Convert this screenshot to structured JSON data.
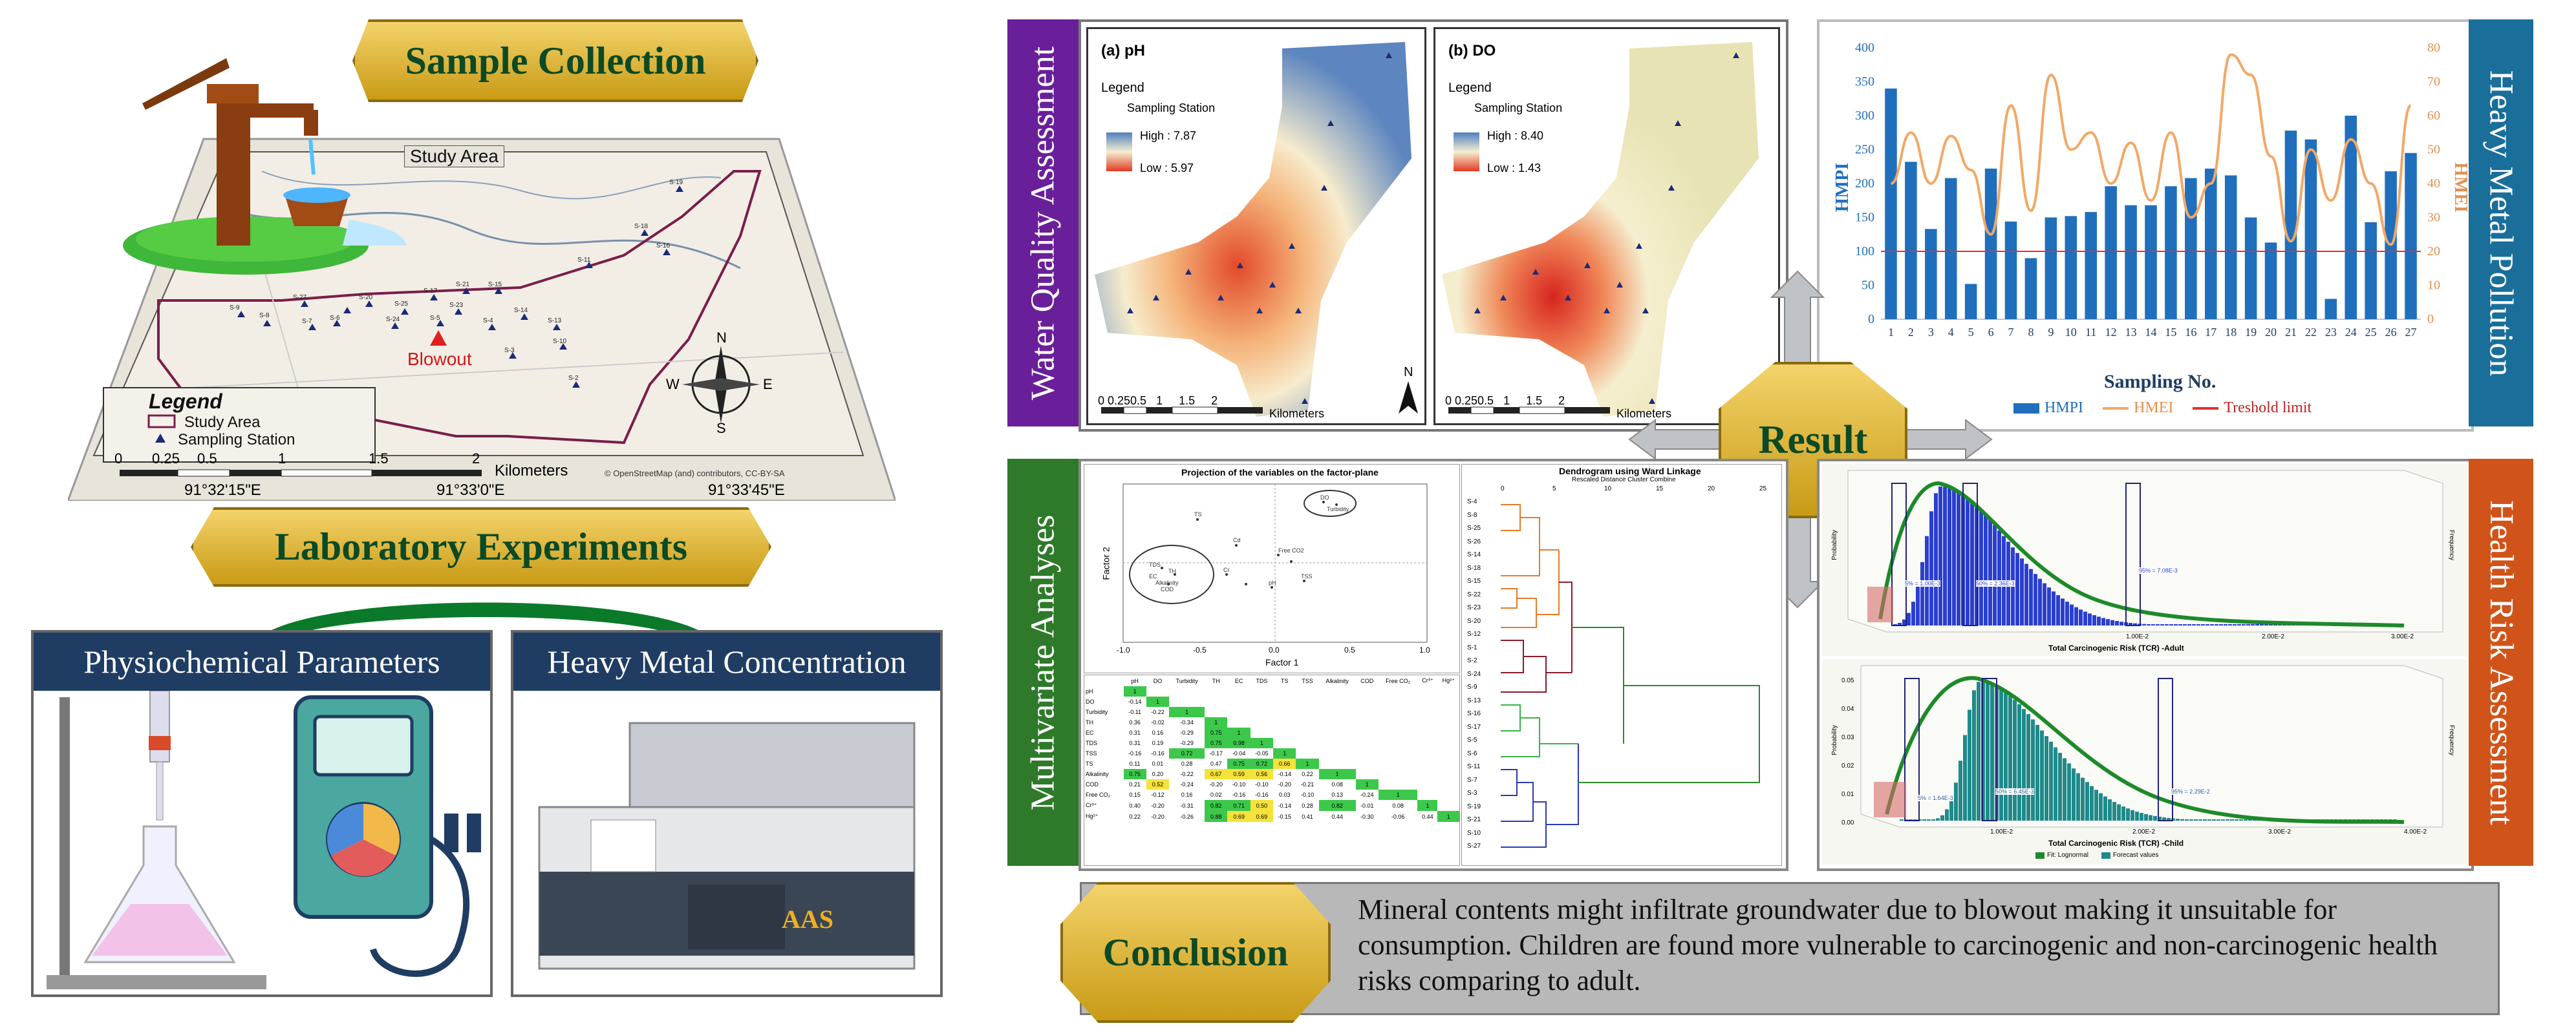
{
  "left": {
    "sample_collection": "Sample Collection",
    "laboratory_experiments": "Laboratory Experiments",
    "physiochemical": "Physiochemical Parameters",
    "heavy_metal": "Heavy Metal Concentration",
    "aas": "AAS",
    "map": {
      "title": "Study Area",
      "legend_title": "Legend",
      "legend_study": "Study Area",
      "legend_station": "Sampling Station",
      "blowout": "Blowout",
      "scale": [
        "0",
        "0.25",
        "0.5",
        "1",
        "1.5",
        "2"
      ],
      "scale_unit": "Kilometers",
      "coords_bottom": [
        "91°32'15\"E",
        "91°33'0\"E",
        "91°33'45\"E"
      ],
      "attribution": "© OpenStreetMap (and) contributors, CC-BY-SA",
      "compass": [
        "N",
        "S",
        "E",
        "W"
      ],
      "stations": [
        {
          "id": "S-1"
        },
        {
          "id": "S-2"
        },
        {
          "id": "S-3"
        },
        {
          "id": "S-4"
        },
        {
          "id": "S-5"
        },
        {
          "id": "S-6"
        },
        {
          "id": "S-7"
        },
        {
          "id": "S-8"
        },
        {
          "id": "S-9"
        },
        {
          "id": "S-10"
        },
        {
          "id": "S-11"
        },
        {
          "id": "S-12"
        },
        {
          "id": "S-13"
        },
        {
          "id": "S-14"
        },
        {
          "id": "S-15"
        },
        {
          "id": "S-16"
        },
        {
          "id": "S-17"
        },
        {
          "id": "S-18"
        },
        {
          "id": "S-19"
        },
        {
          "id": "S-20"
        },
        {
          "id": "S-21"
        },
        {
          "id": "S-22"
        },
        {
          "id": "S-23"
        },
        {
          "id": "S-24"
        },
        {
          "id": "S-25"
        },
        {
          "id": "S-26"
        },
        {
          "id": "S-27"
        }
      ]
    }
  },
  "wqa": {
    "label": "Water Quality Assessment",
    "ph": {
      "title": "(a) pH",
      "legend": "Legend",
      "station": "Sampling Station",
      "high": "High : 7.87",
      "low": "Low : 5.97"
    },
    "do": {
      "title": "(b) DO",
      "legend": "Legend",
      "station": "Sampling Station",
      "high": "High : 8.40",
      "low": "Low : 1.43"
    },
    "scale": "0 0.250.5   1     1.5     2",
    "scale_unit": "Kilometers",
    "north": "N"
  },
  "hmp": {
    "label": "Heavy Metal Pollution",
    "xlabel": "Sampling No.",
    "ylabel_left": "HMPI",
    "ylabel_right": "HMEI",
    "legend": [
      "HMPI",
      "HMEI",
      "Treshold limit"
    ],
    "colors": {
      "bar": "#1f6fbd",
      "line": "#f2a866",
      "threshold": "#e03030"
    }
  },
  "chart_data": {
    "type": "bar",
    "categories": [
      "1",
      "2",
      "3",
      "4",
      "5",
      "6",
      "7",
      "8",
      "9",
      "10",
      "11",
      "12",
      "13",
      "14",
      "15",
      "16",
      "17",
      "18",
      "19",
      "20",
      "21",
      "22",
      "23",
      "24",
      "25",
      "26",
      "27"
    ],
    "series": [
      {
        "name": "HMPI",
        "axis": "left",
        "values": [
          340,
          232,
          133,
          208,
          52,
          222,
          144,
          90,
          150,
          152,
          158,
          196,
          168,
          168,
          196,
          208,
          222,
          212,
          150,
          113,
          278,
          265,
          30,
          300,
          143,
          218,
          245
        ]
      },
      {
        "name": "HMEI",
        "axis": "right",
        "type": "line",
        "values": [
          40,
          55,
          40,
          54,
          44,
          25,
          63,
          32,
          72,
          50,
          55,
          40,
          52,
          35,
          55,
          30,
          40,
          78,
          72,
          48,
          23,
          50,
          35,
          53,
          40,
          22,
          63
        ]
      },
      {
        "name": "Treshold limit",
        "axis": "left",
        "type": "line",
        "values": [
          100,
          100,
          100,
          100,
          100,
          100,
          100,
          100,
          100,
          100,
          100,
          100,
          100,
          100,
          100,
          100,
          100,
          100,
          100,
          100,
          100,
          100,
          100,
          100,
          100,
          100,
          100
        ]
      }
    ],
    "xlabel": "Sampling No.",
    "ylabel": "HMPI",
    "ylabel_right": "HMEI",
    "ylim": [
      0,
      400
    ],
    "ylim_right": [
      0,
      80
    ],
    "yticks": [
      "0",
      "50",
      "100",
      "150",
      "200",
      "250",
      "300",
      "350",
      "400"
    ],
    "yticks_right": [
      "0",
      "10",
      "20",
      "30",
      "40",
      "50",
      "60",
      "70",
      "80"
    ]
  },
  "mva": {
    "label": "Multivariate Analyses",
    "pca_title": "Projection of the variables on the factor-plane",
    "pca_xlabel": "Factor 1",
    "pca_ylabel": "Factor 2",
    "pca_xticks": [
      "-1.0",
      "-0.5",
      "0.0",
      "0.5",
      "1.0"
    ],
    "pca_points": [
      "TDS",
      "TH",
      "EC",
      "Alkalinity",
      "COD",
      "DO",
      "Turbidity",
      "TS",
      "Cd",
      "Cr",
      "pH",
      "Free CO2",
      "TSS"
    ],
    "corr_headers": [
      "pH",
      "DO",
      "Turbidity",
      "TH",
      "EC",
      "TDS",
      "TS",
      "TSS",
      "Alkalinity",
      "COD",
      "Free CO₂",
      "Cr³⁺",
      "Hg²⁺"
    ],
    "corr_rows": [
      {
        "name": "pH",
        "vals": [
          "1"
        ]
      },
      {
        "name": "DO",
        "vals": [
          "-0.14",
          "1"
        ]
      },
      {
        "name": "Turbidity",
        "vals": [
          "-0.11",
          "-0.22",
          "1"
        ]
      },
      {
        "name": "TH",
        "vals": [
          "0.36",
          "-0.02",
          "-0.34",
          "1"
        ]
      },
      {
        "name": "EC",
        "vals": [
          "0.31",
          "0.16",
          "-0.29",
          "0.75",
          "1"
        ]
      },
      {
        "name": "TDS",
        "vals": [
          "0.31",
          "0.19",
          "-0.29",
          "0.75",
          "0.98",
          "1"
        ]
      },
      {
        "name": "TSS",
        "vals": [
          "-0.16",
          "-0.16",
          "0.72",
          "-0.17",
          "-0.04",
          "-0.05",
          "1"
        ]
      },
      {
        "name": "TS",
        "vals": [
          "0.11",
          "0.01",
          "0.28",
          "0.47",
          "0.75",
          "0.72",
          "0.66",
          "1"
        ]
      },
      {
        "name": "Alkalinity",
        "vals": [
          "0.75",
          "0.20",
          "-0.22",
          "0.67",
          "0.59",
          "0.56",
          "-0.14",
          "0.22",
          "1"
        ]
      },
      {
        "name": "COD",
        "vals": [
          "0.21",
          "0.52",
          "-0.24",
          "-0.20",
          "-0.10",
          "-0.10",
          "-0.20",
          "-0.21",
          "0.08",
          "1"
        ]
      },
      {
        "name": "Free CO₂",
        "vals": [
          "0.15",
          "-0.12",
          "0.16",
          "0.02",
          "-0.16",
          "-0.16",
          "0.03",
          "-0.10",
          "0.13",
          "-0.24",
          "1"
        ]
      },
      {
        "name": "Cr³⁺",
        "vals": [
          "0.40",
          "-0.20",
          "-0.31",
          "0.82",
          "0.71",
          "0.50",
          "-0.14",
          "0.28",
          "0.82",
          "-0.01",
          "0.08",
          "1"
        ]
      },
      {
        "name": "Hg²⁺",
        "vals": [
          "0.22",
          "-0.20",
          "-0.26",
          "0.88",
          "0.69",
          "0.69",
          "-0.15",
          "0.41",
          "0.44",
          "-0.30",
          "-0.06",
          "0.44",
          "1"
        ]
      }
    ],
    "dendro_title": "Dendrogram using Ward Linkage",
    "dendro_sub": "Rescaled Distance Cluster Combine",
    "dendro_axis": [
      "0",
      "5",
      "10",
      "15",
      "20",
      "25"
    ],
    "dendro_labels": [
      "S-4",
      "S-8",
      "S-25",
      "S-26",
      "S-14",
      "S-18",
      "S-15",
      "S-22",
      "S-23",
      "S-20",
      "S-12",
      "S-1",
      "S-2",
      "S-24",
      "S-9",
      "S-13",
      "S-16",
      "S-17",
      "S-5",
      "S-6",
      "S-11",
      "S-7",
      "S-3",
      "S-19",
      "S-21",
      "S-10",
      "S-27"
    ]
  },
  "result": "Result",
  "hra": {
    "label": "Health Risk Assessment",
    "adult_xlabel": "Total Carcinogenic Risk (TCR) -Adult",
    "child_xlabel": "Total Carcinogenic Risk (TCR) -Child",
    "ylabel": "Probability",
    "ylabel_right": "Frequency",
    "adult_marks": [
      "5% = 1.00E-3",
      "50% = 2.36E-3",
      "95% = 7.08E-3"
    ],
    "child_marks": [
      "5% = 1.64E-3",
      "50% = 6.45E-3",
      "95% = 2.29E-2"
    ],
    "adult_xticks": [
      "1.00E-2",
      "2.00E-2",
      "3.00E-2"
    ],
    "child_xticks": [
      "1.00E-2",
      "2.00E-2",
      "3.00E-2",
      "4.00E-2"
    ],
    "child_yticks": [
      "0.05",
      "0.04",
      "0.03",
      "0.02",
      "0.01",
      "0.00"
    ],
    "legend": [
      "Fit: Lognormal",
      "Forecast values"
    ],
    "colors": {
      "adult_bar": "#2a3fd0",
      "child_bar": "#1f8a8a",
      "fit": "#1d8a2a"
    }
  },
  "conclusion": {
    "label": "Conclusion",
    "text": "Mineral contents might infiltrate groundwater due to blowout making it unsuitable for consumption. Children are found more vulnerable to carcinogenic and non-carcinogenic health risks comparing to adult."
  }
}
